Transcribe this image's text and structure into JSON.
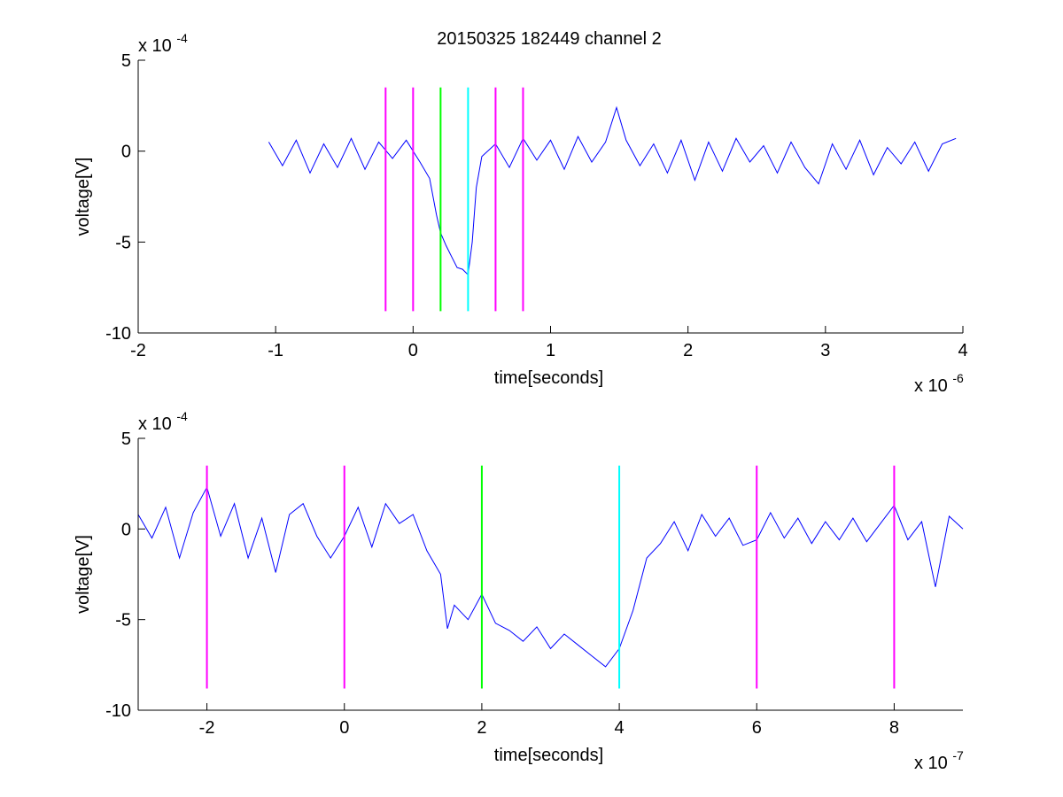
{
  "title": "20150325 182449 channel 2",
  "colors": {
    "trace": "#0000ff",
    "magenta": "#ff00ff",
    "green": "#00ff00",
    "cyan": "#00ffff",
    "axis": "#000000"
  },
  "chart_data": [
    {
      "type": "line",
      "title": "20150325 182449 channel 2",
      "xlabel": "time[seconds]",
      "ylabel": "voltage[V]",
      "x_exponent": "x 10",
      "x_exponent_power": "-6",
      "y_exponent": "x 10",
      "y_exponent_power": "-4",
      "xlim": [
        -2,
        4
      ],
      "ylim": [
        -10,
        5
      ],
      "xticks": [
        "-2",
        "-1",
        "0",
        "1",
        "2",
        "3",
        "4"
      ],
      "yticks": [
        "5",
        "0",
        "-5",
        "-10"
      ],
      "xtick_values": [
        -2,
        -1,
        0,
        1,
        2,
        3,
        4
      ],
      "ytick_values": [
        5,
        0,
        -5,
        -10
      ],
      "grid": false,
      "series": [
        {
          "color": "#0000ff",
          "x": [
            -1.05,
            -0.95,
            -0.85,
            -0.75,
            -0.65,
            -0.55,
            -0.45,
            -0.35,
            -0.25,
            -0.15,
            -0.05,
            0.05,
            0.12,
            0.17,
            0.2,
            0.24,
            0.28,
            0.32,
            0.36,
            0.4,
            0.43,
            0.46,
            0.5,
            0.6,
            0.7,
            0.8,
            0.9,
            1.0,
            1.1,
            1.2,
            1.3,
            1.4,
            1.48,
            1.55,
            1.65,
            1.75,
            1.85,
            1.95,
            2.05,
            2.15,
            2.25,
            2.35,
            2.45,
            2.55,
            2.65,
            2.75,
            2.85,
            2.95,
            3.05,
            3.15,
            3.25,
            3.35,
            3.45,
            3.55,
            3.65,
            3.75,
            3.85,
            3.95
          ],
          "y": [
            0.5,
            -0.8,
            0.6,
            -1.2,
            0.4,
            -0.9,
            0.7,
            -1.0,
            0.5,
            -0.4,
            0.6,
            -0.6,
            -1.5,
            -3.5,
            -4.5,
            -5.2,
            -5.8,
            -6.4,
            -6.5,
            -6.8,
            -5.0,
            -2.0,
            -0.3,
            0.4,
            -0.9,
            0.7,
            -0.5,
            0.6,
            -1.0,
            0.8,
            -0.6,
            0.5,
            2.4,
            0.6,
            -0.8,
            0.4,
            -1.2,
            0.6,
            -1.6,
            0.5,
            -1.1,
            0.7,
            -0.6,
            0.3,
            -1.2,
            0.5,
            -0.9,
            -1.8,
            0.4,
            -1.0,
            0.6,
            -1.3,
            0.2,
            -0.7,
            0.5,
            -1.1,
            0.4,
            0.7
          ]
        }
      ],
      "markers": [
        {
          "x": -0.2,
          "color": "#ff00ff"
        },
        {
          "x": 0.0,
          "color": "#ff00ff"
        },
        {
          "x": 0.2,
          "color": "#00ff00"
        },
        {
          "x": 0.4,
          "color": "#00ffff"
        },
        {
          "x": 0.6,
          "color": "#ff00ff"
        },
        {
          "x": 0.8,
          "color": "#ff00ff"
        }
      ],
      "marker_range": [
        -8.8,
        3.5
      ]
    },
    {
      "type": "line",
      "xlabel": "time[seconds]",
      "ylabel": "voltage[V]",
      "x_exponent": "x 10",
      "x_exponent_power": "-7",
      "y_exponent": "x 10",
      "y_exponent_power": "-4",
      "xlim": [
        -3,
        9
      ],
      "ylim": [
        -10,
        5
      ],
      "xticks": [
        "-2",
        "0",
        "2",
        "4",
        "6",
        "8"
      ],
      "yticks": [
        "5",
        "0",
        "-5",
        "-10"
      ],
      "xtick_values": [
        -2,
        0,
        2,
        4,
        6,
        8
      ],
      "ytick_values": [
        5,
        0,
        -5,
        -10
      ],
      "grid": false,
      "series": [
        {
          "color": "#0000ff",
          "x": [
            -3.0,
            -2.8,
            -2.6,
            -2.4,
            -2.2,
            -2.0,
            -1.8,
            -1.6,
            -1.4,
            -1.2,
            -1.0,
            -0.8,
            -0.6,
            -0.4,
            -0.2,
            0.0,
            0.2,
            0.4,
            0.6,
            0.8,
            1.0,
            1.2,
            1.4,
            1.5,
            1.6,
            1.8,
            2.0,
            2.2,
            2.4,
            2.6,
            2.8,
            3.0,
            3.2,
            3.4,
            3.6,
            3.8,
            4.0,
            4.2,
            4.4,
            4.6,
            4.8,
            5.0,
            5.2,
            5.4,
            5.6,
            5.8,
            6.0,
            6.2,
            6.4,
            6.6,
            6.8,
            7.0,
            7.2,
            7.4,
            7.6,
            7.8,
            8.0,
            8.2,
            8.4,
            8.6,
            8.8,
            9.0
          ],
          "y": [
            0.8,
            -0.5,
            1.2,
            -1.6,
            0.9,
            2.3,
            -0.4,
            1.4,
            -1.6,
            0.6,
            -2.4,
            0.8,
            1.4,
            -0.4,
            -1.6,
            -0.4,
            1.2,
            -1.0,
            1.4,
            0.3,
            0.8,
            -1.2,
            -2.5,
            -5.5,
            -4.2,
            -5.0,
            -3.6,
            -5.2,
            -5.6,
            -6.2,
            -5.4,
            -6.6,
            -5.8,
            -6.4,
            -7.0,
            -7.6,
            -6.6,
            -4.5,
            -1.6,
            -0.8,
            0.4,
            -1.2,
            0.8,
            -0.4,
            0.6,
            -0.9,
            -0.6,
            0.9,
            -0.5,
            0.6,
            -0.8,
            0.4,
            -0.6,
            0.6,
            -0.7,
            0.3,
            1.3,
            -0.6,
            0.4,
            -3.2,
            0.7,
            0.0
          ]
        }
      ],
      "markers": [
        {
          "x": -2,
          "color": "#ff00ff"
        },
        {
          "x": 0,
          "color": "#ff00ff"
        },
        {
          "x": 2,
          "color": "#00ff00"
        },
        {
          "x": 4,
          "color": "#00ffff"
        },
        {
          "x": 6,
          "color": "#ff00ff"
        },
        {
          "x": 8,
          "color": "#ff00ff"
        }
      ],
      "marker_range": [
        -8.8,
        3.5
      ]
    }
  ]
}
